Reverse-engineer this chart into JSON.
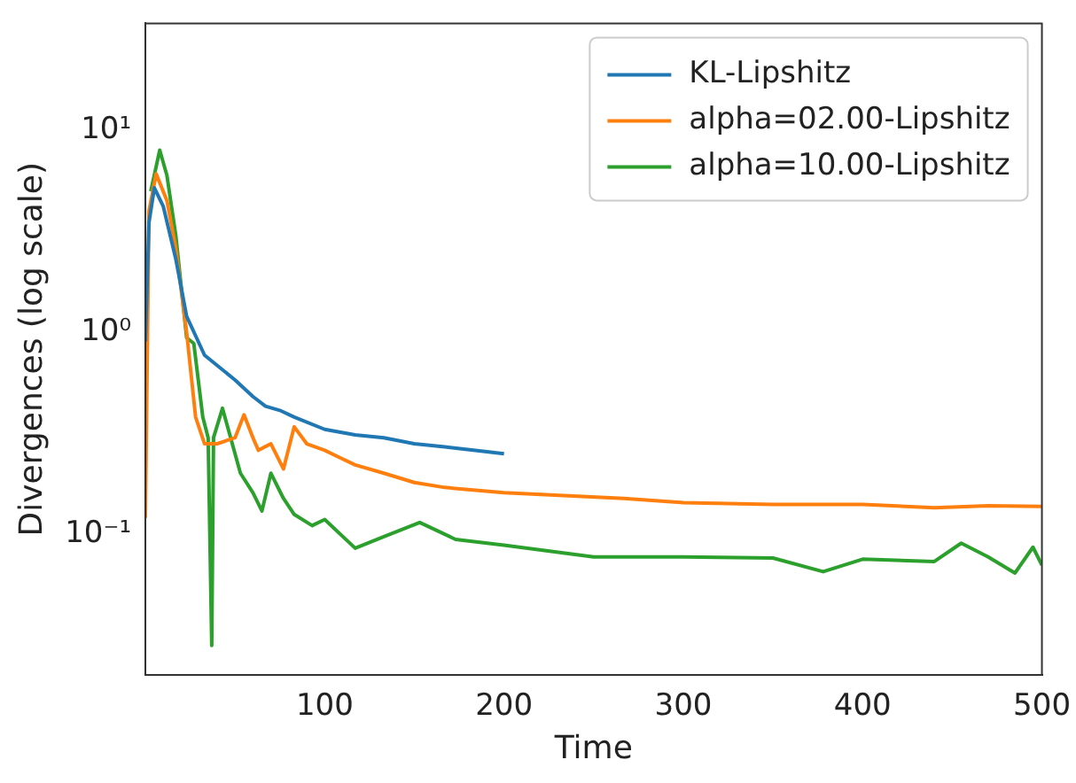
{
  "chart_data": {
    "type": "line",
    "xlabel": "Time",
    "ylabel": "Divergences (log scale)",
    "log": "y",
    "xlim": [
      0,
      500
    ],
    "xticks": [
      100,
      200,
      300,
      400,
      500
    ],
    "ylim": [
      0.02,
      34
    ],
    "yticks": [
      {
        "value": 0.1,
        "label": "10⁻¹"
      },
      {
        "value": 1,
        "label": "10⁰"
      },
      {
        "value": 10,
        "label": "10¹"
      }
    ],
    "grid": false,
    "legend": "top right",
    "marker": "none",
    "line_style": "solid",
    "series": [
      {
        "name": "KL-Lipshitz",
        "color": "#1f77b4",
        "x": [
          0,
          2,
          5,
          10,
          17,
          23,
          33,
          50,
          60,
          67,
          75,
          83,
          100,
          117,
          133,
          150,
          167,
          183,
          200
        ],
        "values": [
          0.9,
          3.5,
          5.2,
          4.2,
          2.3,
          1.2,
          0.77,
          0.58,
          0.48,
          0.43,
          0.41,
          0.38,
          0.33,
          0.31,
          0.3,
          0.28,
          0.27,
          0.26,
          0.25
        ]
      },
      {
        "name": "alpha=02.00-Lipshitz",
        "color": "#ff7f0e",
        "x": [
          0,
          2,
          6,
          12,
          17,
          23,
          28,
          33,
          40,
          50,
          55,
          60,
          63,
          70,
          77,
          83,
          90,
          100,
          108,
          117,
          133,
          150,
          167,
          200,
          267,
          300,
          350,
          400,
          440,
          470,
          500
        ],
        "values": [
          0.12,
          4.0,
          6.1,
          4.5,
          2.6,
          1.0,
          0.38,
          0.28,
          0.28,
          0.3,
          0.39,
          0.3,
          0.26,
          0.28,
          0.21,
          0.34,
          0.28,
          0.26,
          0.24,
          0.22,
          0.2,
          0.18,
          0.17,
          0.16,
          0.15,
          0.143,
          0.14,
          0.14,
          0.135,
          0.138,
          0.137
        ]
      },
      {
        "name": "alpha=10.00-Lipshitz",
        "color": "#2ca02c",
        "x": [
          3,
          8,
          12,
          17,
          23,
          27,
          32,
          35,
          37,
          38,
          43,
          53,
          60,
          65,
          70,
          77,
          83,
          93,
          100,
          117,
          133,
          153,
          173,
          200,
          250,
          300,
          350,
          378,
          400,
          440,
          455,
          470,
          485,
          495,
          500
        ],
        "values": [
          5.0,
          8.0,
          6.0,
          3.0,
          0.94,
          0.88,
          0.38,
          0.3,
          0.028,
          0.3,
          0.42,
          0.2,
          0.16,
          0.13,
          0.2,
          0.15,
          0.125,
          0.11,
          0.118,
          0.085,
          0.097,
          0.114,
          0.094,
          0.088,
          0.077,
          0.077,
          0.076,
          0.065,
          0.075,
          0.073,
          0.09,
          0.077,
          0.064,
          0.086,
          0.07
        ]
      }
    ]
  }
}
